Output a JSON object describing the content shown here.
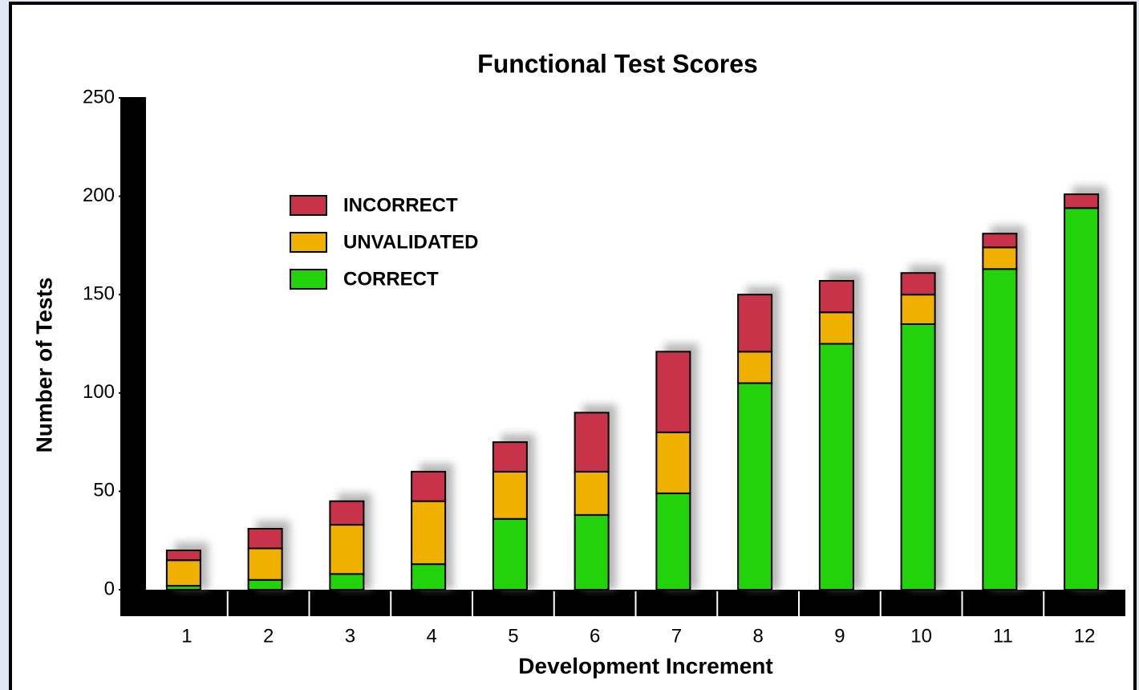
{
  "chart_data": {
    "type": "stacked_bar",
    "title": "Functional Test Scores",
    "x_label": "Development Increment",
    "y_label": "Number of Tests",
    "categories": [
      "1",
      "2",
      "3",
      "4",
      "5",
      "6",
      "7",
      "8",
      "9",
      "10",
      "11",
      "12"
    ],
    "series": [
      {
        "name": "INCORRECT",
        "color": "#c8334a",
        "values": [
          5,
          10,
          12,
          15,
          15,
          30,
          41,
          29,
          16,
          11,
          7,
          7
        ]
      },
      {
        "name": "UNVALIDATED",
        "color": "#f0b000",
        "values": [
          13,
          16,
          25,
          32,
          24,
          22,
          31,
          16,
          16,
          15,
          11,
          0
        ]
      },
      {
        "name": "CORRECT",
        "color": "#22d20a",
        "values": [
          2,
          5,
          8,
          13,
          36,
          38,
          49,
          105,
          125,
          135,
          163,
          194
        ]
      }
    ],
    "ylim": [
      0,
      250
    ],
    "yticks": [
      0,
      50,
      100,
      150,
      200,
      250
    ],
    "grid": false,
    "legend": "upper left"
  }
}
